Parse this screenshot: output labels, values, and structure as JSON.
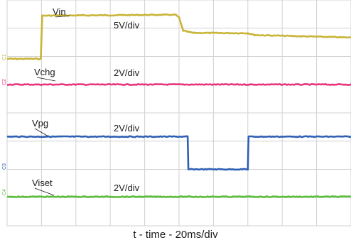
{
  "chart_data": {
    "type": "line",
    "x_unit_per_div": "20ms/div",
    "xlabel": "t - time - 20ms/div",
    "x_divisions": 10,
    "y_divisions": 8,
    "grid": true,
    "x": [
      0,
      1,
      1.02,
      4.9,
      5.1,
      5.3,
      6,
      7,
      7.2,
      8,
      9,
      10
    ],
    "series": [
      {
        "name": "Vin",
        "scale_label": "5V/div",
        "color": "#c8b436",
        "marker": "C1",
        "points": [
          [
            0,
            0.3
          ],
          [
            0.98,
            0.3
          ],
          [
            1.02,
            1.68
          ],
          [
            4.9,
            1.71
          ],
          [
            5.0,
            1.62
          ],
          [
            5.12,
            1.2
          ],
          [
            5.4,
            1.13
          ],
          [
            7.0,
            1.12
          ],
          [
            7.2,
            1.06
          ],
          [
            10,
            0.98
          ]
        ]
      },
      {
        "name": "Vchg",
        "scale_label": "2V/div",
        "color": "#e8347a",
        "marker": "C2",
        "points": [
          [
            0,
            0
          ],
          [
            10,
            0
          ]
        ]
      },
      {
        "name": "Vpg",
        "scale_label": "2V/div",
        "color": "#2f5fb4",
        "marker": "C3",
        "points": [
          [
            0,
            1.1
          ],
          [
            5.25,
            1.1
          ],
          [
            5.27,
            0.1
          ],
          [
            7.0,
            0.1
          ],
          [
            7.02,
            1.1
          ],
          [
            10,
            1.1
          ]
        ]
      },
      {
        "name": "Viset",
        "scale_label": "2V/div",
        "color": "#5cbf3c",
        "marker": "C4",
        "points": [
          [
            0,
            0
          ],
          [
            10,
            0
          ]
        ]
      }
    ]
  }
}
